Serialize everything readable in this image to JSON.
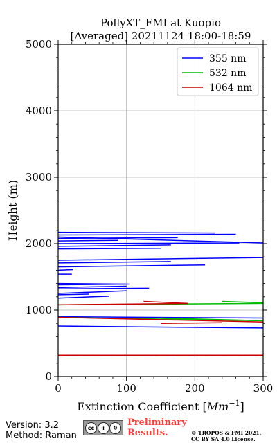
{
  "chart_data": {
    "type": "line",
    "title": "PollyXT_FMI at Kuopio",
    "subtitle": "[Averaged] 20211124 18:00-18:59",
    "xlabel": "Extinction Coefficient [Mm^-1]",
    "ylabel": "Height (m)",
    "xlim": [
      0,
      300
    ],
    "ylim": [
      0,
      5000
    ],
    "xticks": [
      "0",
      "100",
      "200",
      "300"
    ],
    "yticks": [
      "0",
      "1000",
      "2000",
      "3000",
      "4000",
      "5000"
    ],
    "grid": true,
    "legend_position": "top-right",
    "series": [
      {
        "name": "355 nm",
        "color": "#0000ff",
        "points": [
          [
            0,
            310
          ],
          [
            300,
            320
          ],
          [
            0,
            760
          ],
          [
            300,
            730
          ],
          [
            0,
            900
          ],
          [
            300,
            880
          ],
          [
            0,
            1180
          ],
          [
            75,
            1210
          ],
          [
            0,
            1230
          ],
          [
            45,
            1240
          ],
          [
            0,
            1250
          ],
          [
            100,
            1290
          ],
          [
            0,
            1320
          ],
          [
            133,
            1330
          ],
          [
            0,
            1340
          ],
          [
            100,
            1360
          ],
          [
            0,
            1380
          ],
          [
            105,
            1390
          ],
          [
            0,
            1400
          ],
          [
            100,
            1390
          ],
          [
            0,
            1540
          ],
          [
            20,
            1540
          ],
          [
            0,
            1600
          ],
          [
            22,
            1610
          ],
          [
            0,
            1650
          ],
          [
            215,
            1680
          ],
          [
            0,
            1710
          ],
          [
            165,
            1730
          ],
          [
            0,
            1750
          ],
          [
            300,
            1790
          ],
          [
            0,
            1920
          ],
          [
            150,
            1930
          ],
          [
            0,
            1960
          ],
          [
            165,
            1980
          ],
          [
            0,
            2000
          ],
          [
            265,
            2010
          ],
          [
            0,
            2040
          ],
          [
            88,
            2050
          ],
          [
            0,
            2080
          ],
          [
            175,
            2090
          ],
          [
            0,
            2100
          ],
          [
            300,
            2010
          ],
          [
            0,
            2130
          ],
          [
            260,
            2140
          ],
          [
            0,
            2170
          ],
          [
            230,
            2160
          ]
        ]
      },
      {
        "name": "532 nm",
        "color": "#00bb00",
        "points": [
          [
            0,
            890
          ],
          [
            300,
            840
          ],
          [
            0,
            1080
          ],
          [
            300,
            1100
          ],
          [
            150,
            880
          ],
          [
            300,
            840
          ],
          [
            240,
            1130
          ],
          [
            300,
            1110
          ]
        ]
      },
      {
        "name": "1064 nm",
        "color": "#cc0000",
        "points": [
          [
            0,
            320
          ],
          [
            300,
            320
          ],
          [
            0,
            890
          ],
          [
            300,
            820
          ],
          [
            0,
            1080
          ],
          [
            190,
            1100
          ],
          [
            125,
            1130
          ],
          [
            190,
            1100
          ],
          [
            150,
            800
          ],
          [
            240,
            810
          ]
        ]
      }
    ]
  },
  "footer": {
    "version": "Version: 3.2",
    "method": "Method: Raman",
    "preliminary_line1": "Preliminary",
    "preliminary_line2": "Results.",
    "license_line1": "© TROPOS & FMI 2021.",
    "license_line2": "CC BY SA 4.0 License."
  }
}
